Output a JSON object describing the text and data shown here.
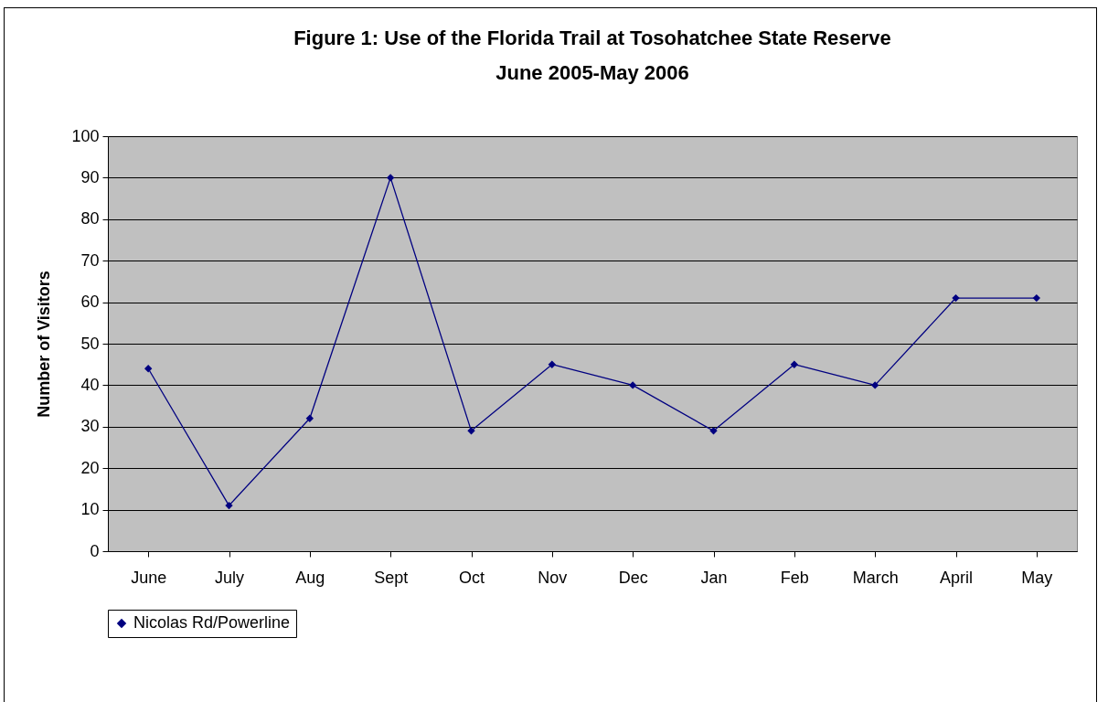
{
  "chart_data": {
    "type": "line",
    "title": [
      "Figure 1: Use of the Florida Trail at Tosohatchee State Reserve",
      "June 2005-May 2006"
    ],
    "ylabel": "Number of Visitors",
    "categories": [
      "June",
      "July",
      "Aug",
      "Sept",
      "Oct",
      "Nov",
      "Dec",
      "Jan",
      "Feb",
      "March",
      "April",
      "May"
    ],
    "series": [
      {
        "name": "Nicolas Rd/Powerline",
        "color": "#000080",
        "values": [
          44,
          11,
          32,
          90,
          29,
          45,
          40,
          29,
          45,
          40,
          61,
          61
        ]
      }
    ],
    "ylim": [
      0,
      100
    ],
    "yticks": [
      0,
      10,
      20,
      30,
      40,
      50,
      60,
      70,
      80,
      90,
      100
    ],
    "grid": "y",
    "legend": "bottom",
    "marker": "diamond",
    "line_style": "solid"
  }
}
